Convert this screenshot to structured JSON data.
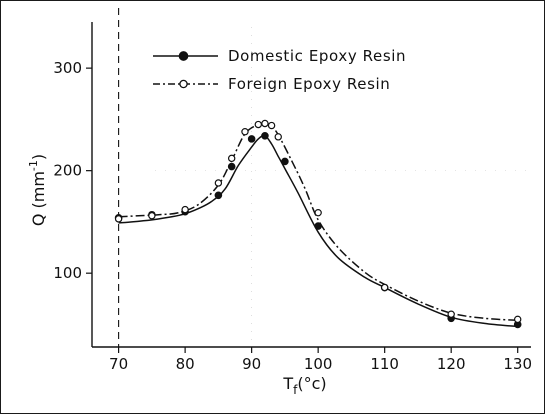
{
  "chart_data": {
    "type": "line",
    "xlim": [
      66,
      132
    ],
    "ylim": [
      28,
      345
    ],
    "x_ticks": [
      70,
      80,
      90,
      100,
      110,
      120,
      130
    ],
    "y_ticks": [
      100,
      200,
      300
    ],
    "xlabel": {
      "base": "T",
      "sub": "f",
      "unit": "(°c)"
    },
    "ylabel": {
      "base": "Q (mm",
      "sup": "-1",
      "end": ")"
    },
    "reference_line_x": 70,
    "legend_position": "top-right",
    "series": [
      {
        "name": "Domestic Epoxy Resin",
        "line_style": "solid",
        "marker": "filled-circle",
        "points": [
          [
            70,
            154
          ],
          [
            75,
            157
          ],
          [
            80,
            160
          ],
          [
            85,
            176
          ],
          [
            87,
            204
          ],
          [
            90,
            231
          ],
          [
            92,
            234
          ],
          [
            95,
            209
          ],
          [
            100,
            146
          ],
          [
            110,
            86
          ],
          [
            120,
            56
          ],
          [
            130,
            50
          ]
        ],
        "curve": [
          [
            70,
            149
          ],
          [
            72,
            150
          ],
          [
            75,
            152
          ],
          [
            78,
            155
          ],
          [
            80,
            158
          ],
          [
            82,
            163
          ],
          [
            84,
            170
          ],
          [
            86,
            182
          ],
          [
            88,
            205
          ],
          [
            90,
            223
          ],
          [
            91,
            231
          ],
          [
            92,
            234
          ],
          [
            93,
            226
          ],
          [
            94,
            214
          ],
          [
            95,
            202
          ],
          [
            97,
            178
          ],
          [
            100,
            140
          ],
          [
            103,
            115
          ],
          [
            107,
            96
          ],
          [
            110,
            86
          ],
          [
            115,
            70
          ],
          [
            120,
            57
          ],
          [
            125,
            51
          ],
          [
            130,
            48
          ]
        ]
      },
      {
        "name": "Foreign Epoxy Resin",
        "line_style": "dash-dot",
        "marker": "open-circle",
        "points": [
          [
            70,
            153
          ],
          [
            75,
            156
          ],
          [
            80,
            162
          ],
          [
            85,
            188
          ],
          [
            87,
            212
          ],
          [
            89,
            238
          ],
          [
            91,
            245
          ],
          [
            92,
            246
          ],
          [
            93,
            244
          ],
          [
            94,
            233
          ],
          [
            100,
            159
          ],
          [
            110,
            86
          ],
          [
            120,
            60
          ],
          [
            130,
            55
          ]
        ],
        "curve": [
          [
            70,
            155
          ],
          [
            73,
            156
          ],
          [
            76,
            157
          ],
          [
            79,
            159
          ],
          [
            82,
            167
          ],
          [
            85,
            186
          ],
          [
            87,
            210
          ],
          [
            89,
            236
          ],
          [
            91,
            245
          ],
          [
            92,
            246
          ],
          [
            93,
            243
          ],
          [
            94,
            235
          ],
          [
            96,
            210
          ],
          [
            98,
            183
          ],
          [
            100,
            152
          ],
          [
            103,
            125
          ],
          [
            107,
            101
          ],
          [
            110,
            89
          ],
          [
            115,
            73
          ],
          [
            120,
            61
          ],
          [
            125,
            56
          ],
          [
            130,
            54
          ]
        ]
      }
    ]
  }
}
